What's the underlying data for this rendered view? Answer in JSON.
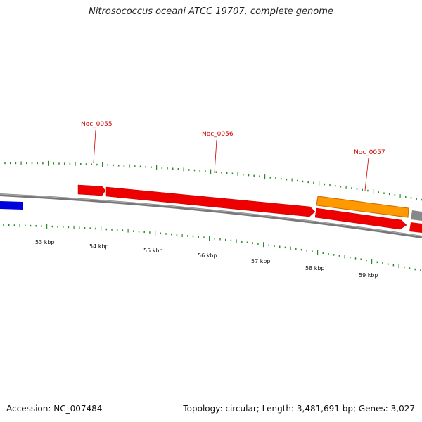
{
  "title": "Nitrosococcus oceani ATCC 19707, complete genome",
  "footer": {
    "accession": "Accession: NC_007484",
    "summary": "Topology: circular; Length: 3,481,691 bp; Genes: 3,027"
  },
  "colors": {
    "backbone": "#888888",
    "forward_gene": "#ee0000",
    "reverse_gene": "#ee0000",
    "highlight_gene": "#ff9900",
    "blue_gene": "#0000dd",
    "gray_gene": "#888888",
    "tick": "#2a8a2a",
    "label": "#cc0000"
  },
  "scale_labels": [
    "53 kbp",
    "54 kbp",
    "55 kbp",
    "56 kbp",
    "57 kbp",
    "58 kbp",
    "59 kbp"
  ],
  "gene_labels": [
    "Noc_0055",
    "Noc_0056",
    "Noc_0057"
  ]
}
